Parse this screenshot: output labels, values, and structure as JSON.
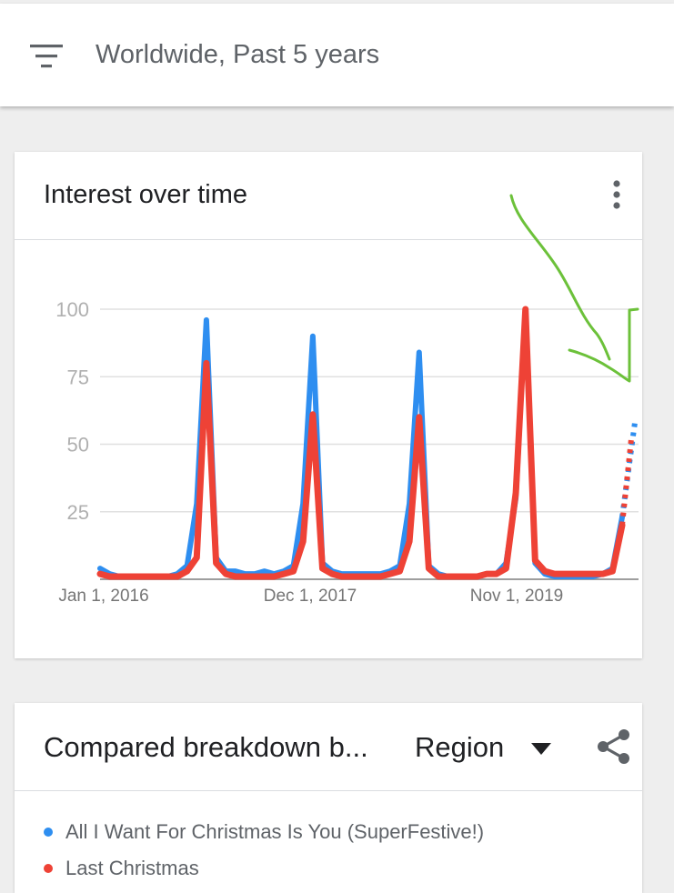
{
  "filter": {
    "icon": "filter-icon",
    "text": "Worldwide, Past 5 years"
  },
  "interest_card": {
    "title": "Interest over time",
    "menu_icon": "more-vert-icon"
  },
  "colors": {
    "series1": "#2e8ef0",
    "series2": "#ee4236",
    "annotation": "#6cc13a"
  },
  "chart_data": {
    "type": "line",
    "y_ticks": [
      100,
      75,
      50,
      25
    ],
    "x_tick_labels": [
      "Jan 1, 2016",
      "Dec 1, 2017",
      "Nov 1, 2019"
    ],
    "ylim": [
      0,
      100
    ],
    "grid": true,
    "series": [
      {
        "name": "All I Want For Christmas Is You (SuperFestive!)",
        "color": "#2e8ef0",
        "values": [
          4,
          2,
          1,
          1,
          1,
          1,
          1,
          1,
          2,
          5,
          28,
          96,
          8,
          3,
          3,
          2,
          2,
          3,
          2,
          3,
          5,
          28,
          90,
          6,
          3,
          2,
          2,
          2,
          2,
          2,
          3,
          5,
          28,
          84,
          5,
          2,
          1,
          1,
          1,
          1,
          2,
          2,
          6,
          30,
          100,
          6,
          2,
          1,
          1,
          1,
          1,
          1,
          2,
          4,
          23
        ],
        "partial_values": [
          23,
          58
        ]
      },
      {
        "name": "Last Christmas",
        "color": "#ee4236",
        "values": [
          2,
          1,
          1,
          1,
          1,
          1,
          1,
          1,
          1,
          3,
          8,
          80,
          6,
          2,
          1,
          1,
          1,
          1,
          1,
          2,
          3,
          14,
          61,
          4,
          2,
          1,
          1,
          1,
          1,
          1,
          2,
          3,
          14,
          60,
          4,
          1,
          1,
          1,
          1,
          1,
          2,
          2,
          4,
          32,
          100,
          7,
          3,
          2,
          2,
          2,
          2,
          2,
          2,
          3,
          20
        ],
        "partial_values": [
          20,
          52
        ]
      }
    ]
  },
  "breakdown_card": {
    "title": "Compared breakdown b...",
    "region_label": "Region",
    "dropdown_icon": "arrow-drop-down-icon",
    "share_icon": "share-icon",
    "legend": [
      "All I Want For Christmas Is You (SuperFestive!)",
      "Last Christmas"
    ]
  }
}
